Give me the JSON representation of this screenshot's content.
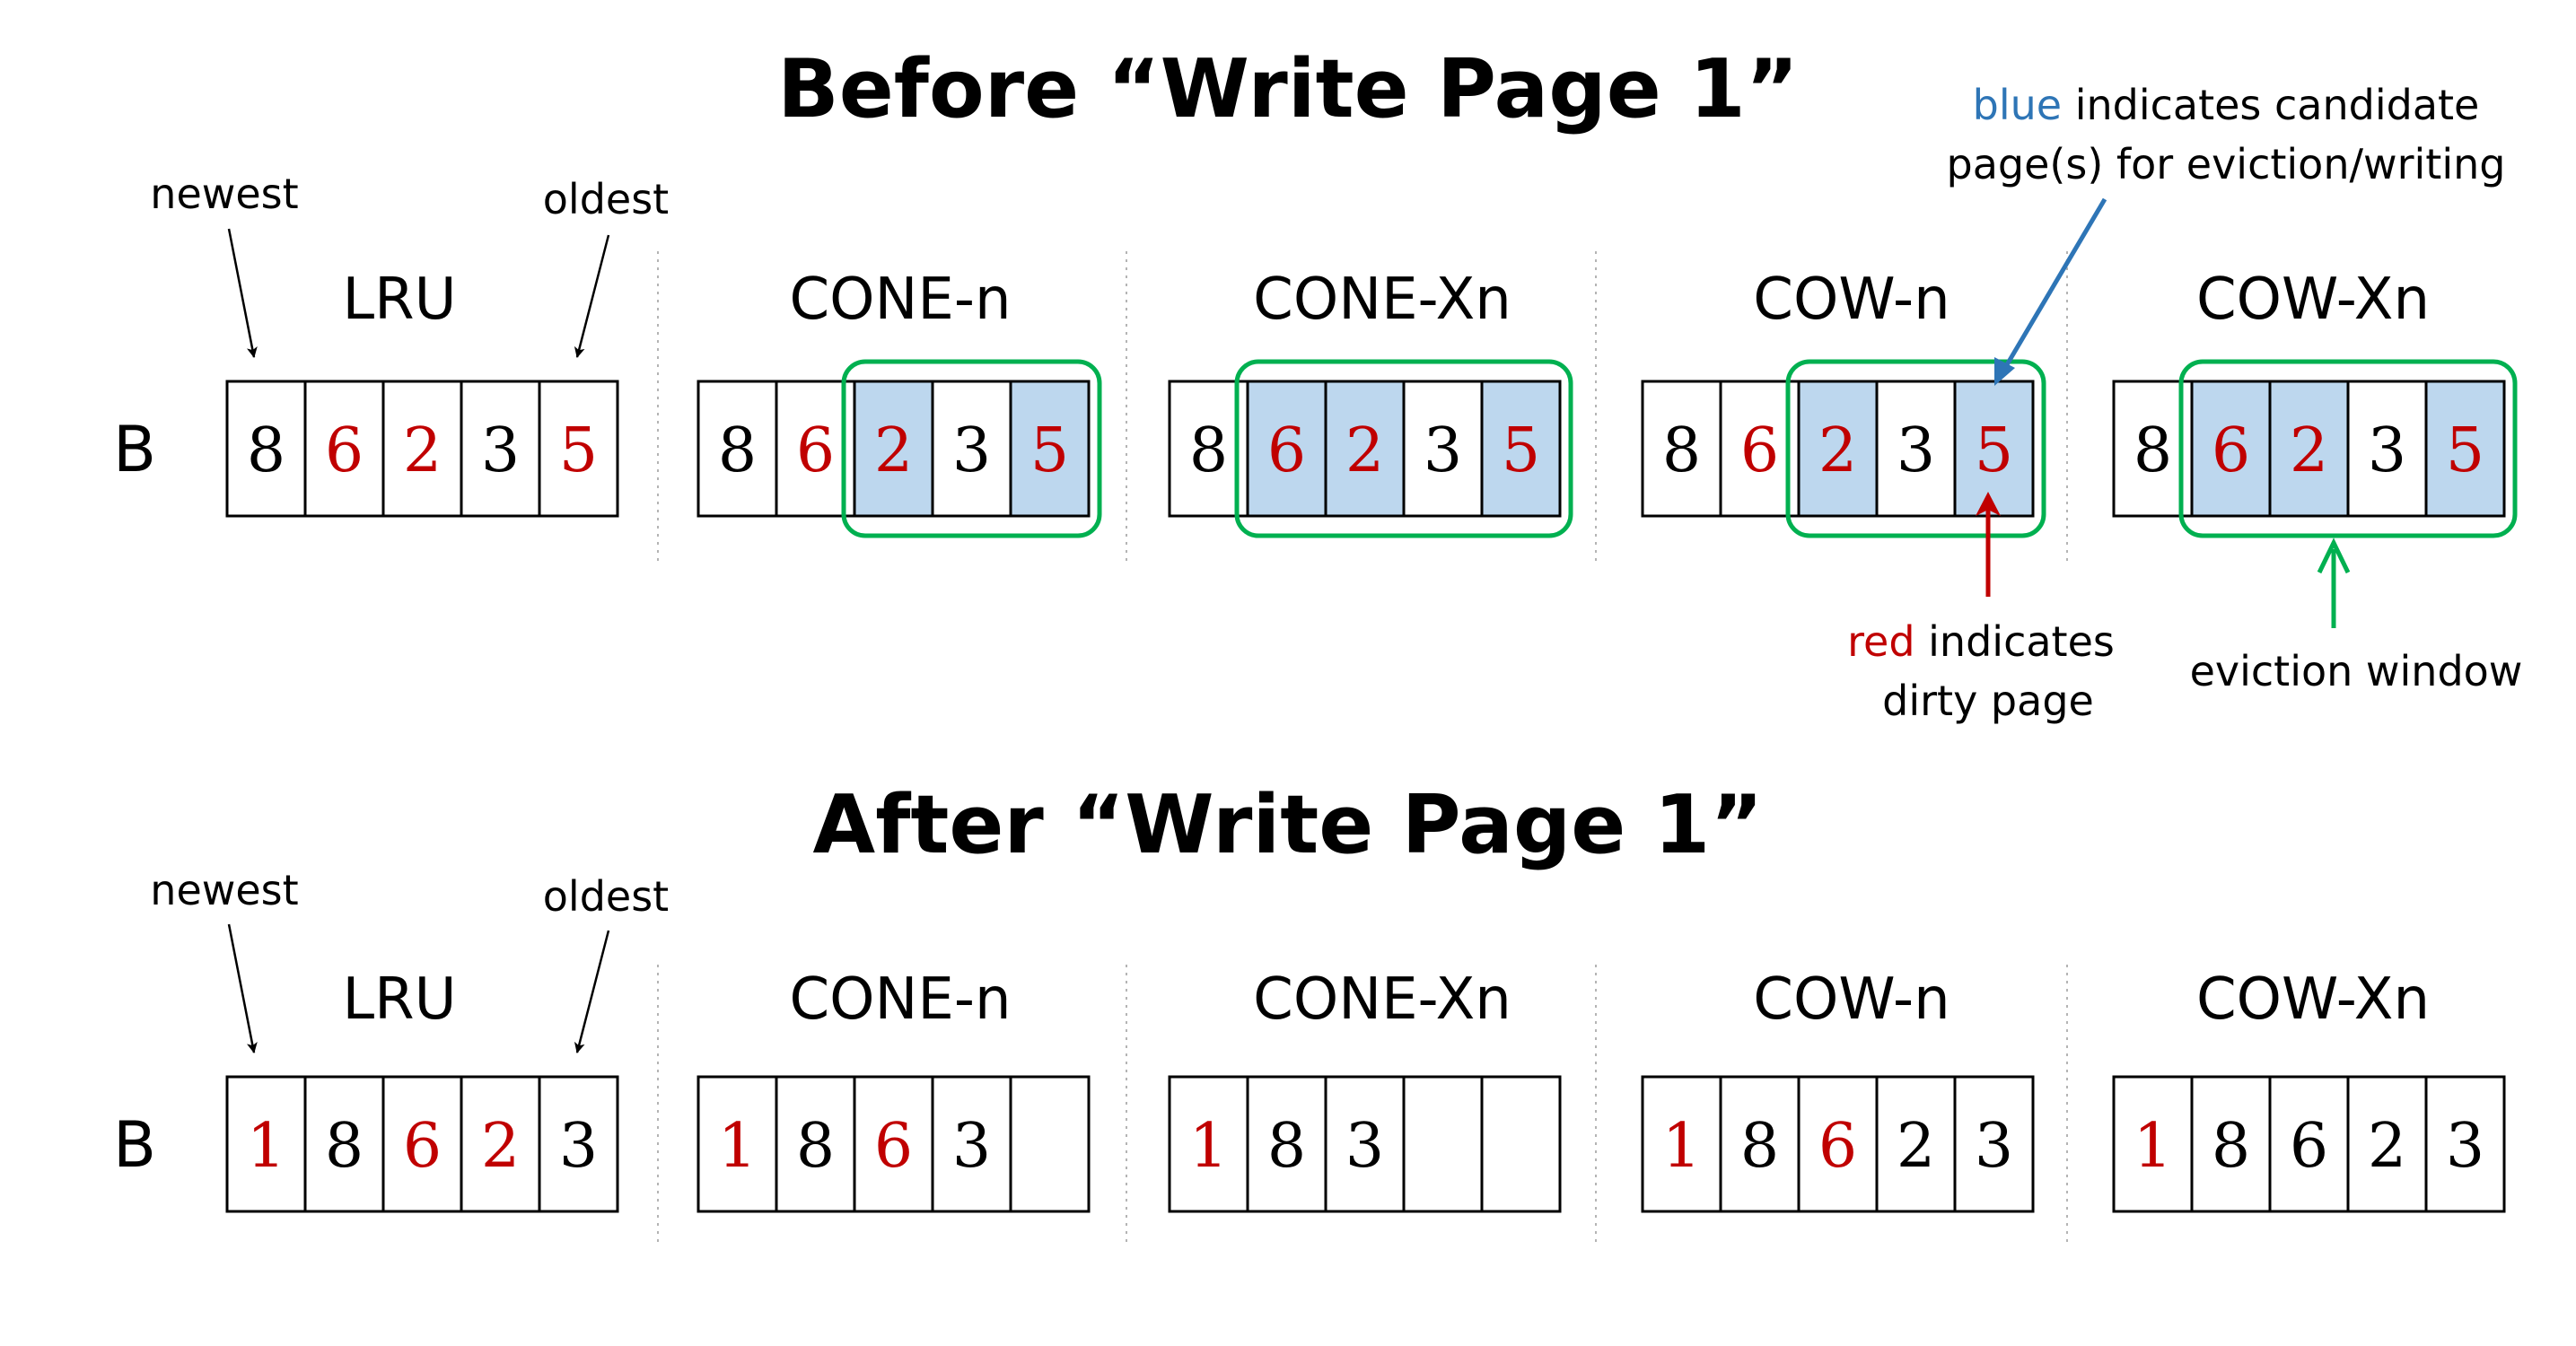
{
  "colors": {
    "dirty": "#c00000",
    "clean": "#000000",
    "candidate_fill": "#bdd7ee",
    "window_stroke": "#00b050",
    "blue_arrow": "#2e75b6",
    "red_arrow": "#c00000",
    "green_arrow": "#00b050",
    "divider": "#b4b4b4"
  },
  "row_label": "B",
  "panels": [
    {
      "title": "Before “Write Page 1”",
      "newest_label": "newest",
      "oldest_label": "oldest",
      "policies": [
        {
          "name": "LRU",
          "cells": [
            {
              "v": "8",
              "dirty": false,
              "cand": false
            },
            {
              "v": "6",
              "dirty": true,
              "cand": false
            },
            {
              "v": "2",
              "dirty": true,
              "cand": false
            },
            {
              "v": "3",
              "dirty": false,
              "cand": false
            },
            {
              "v": "5",
              "dirty": true,
              "cand": false
            }
          ],
          "window": null
        },
        {
          "name": "CONE-n",
          "cells": [
            {
              "v": "8",
              "dirty": false,
              "cand": false
            },
            {
              "v": "6",
              "dirty": true,
              "cand": false
            },
            {
              "v": "2",
              "dirty": true,
              "cand": true
            },
            {
              "v": "3",
              "dirty": false,
              "cand": false
            },
            {
              "v": "5",
              "dirty": true,
              "cand": true
            }
          ],
          "window": [
            2,
            4
          ]
        },
        {
          "name": "CONE-Xn",
          "cells": [
            {
              "v": "8",
              "dirty": false,
              "cand": false
            },
            {
              "v": "6",
              "dirty": true,
              "cand": true
            },
            {
              "v": "2",
              "dirty": true,
              "cand": true
            },
            {
              "v": "3",
              "dirty": false,
              "cand": false
            },
            {
              "v": "5",
              "dirty": true,
              "cand": true
            }
          ],
          "window": [
            1,
            4
          ]
        },
        {
          "name": "COW-n",
          "cells": [
            {
              "v": "8",
              "dirty": false,
              "cand": false
            },
            {
              "v": "6",
              "dirty": true,
              "cand": false
            },
            {
              "v": "2",
              "dirty": true,
              "cand": true
            },
            {
              "v": "3",
              "dirty": false,
              "cand": false
            },
            {
              "v": "5",
              "dirty": true,
              "cand": true
            }
          ],
          "window": [
            2,
            4
          ]
        },
        {
          "name": "COW-Xn",
          "cells": [
            {
              "v": "8",
              "dirty": false,
              "cand": false
            },
            {
              "v": "6",
              "dirty": true,
              "cand": true
            },
            {
              "v": "2",
              "dirty": true,
              "cand": true
            },
            {
              "v": "3",
              "dirty": false,
              "cand": false
            },
            {
              "v": "5",
              "dirty": true,
              "cand": true
            }
          ],
          "window": [
            1,
            4
          ]
        }
      ]
    },
    {
      "title": "After “Write Page 1”",
      "newest_label": "newest",
      "oldest_label": "oldest",
      "policies": [
        {
          "name": "LRU",
          "cells": [
            {
              "v": "1",
              "dirty": true
            },
            {
              "v": "8",
              "dirty": false
            },
            {
              "v": "6",
              "dirty": true
            },
            {
              "v": "2",
              "dirty": true
            },
            {
              "v": "3",
              "dirty": false
            }
          ]
        },
        {
          "name": "CONE-n",
          "cells": [
            {
              "v": "1",
              "dirty": true
            },
            {
              "v": "8",
              "dirty": false
            },
            {
              "v": "6",
              "dirty": true
            },
            {
              "v": "3",
              "dirty": false
            },
            {
              "v": "",
              "dirty": false
            }
          ]
        },
        {
          "name": "CONE-Xn",
          "cells": [
            {
              "v": "1",
              "dirty": true
            },
            {
              "v": "8",
              "dirty": false
            },
            {
              "v": "3",
              "dirty": false
            },
            {
              "v": "",
              "dirty": false
            },
            {
              "v": "",
              "dirty": false
            }
          ]
        },
        {
          "name": "COW-n",
          "cells": [
            {
              "v": "1",
              "dirty": true
            },
            {
              "v": "8",
              "dirty": false
            },
            {
              "v": "6",
              "dirty": true
            },
            {
              "v": "2",
              "dirty": false
            },
            {
              "v": "3",
              "dirty": false
            }
          ]
        },
        {
          "name": "COW-Xn",
          "cells": [
            {
              "v": "1",
              "dirty": true
            },
            {
              "v": "8",
              "dirty": false
            },
            {
              "v": "6",
              "dirty": false
            },
            {
              "v": "2",
              "dirty": false
            },
            {
              "v": "3",
              "dirty": false
            }
          ]
        }
      ]
    }
  ],
  "legend": {
    "blue_word": "blue",
    "blue_rest": " indicates candidate",
    "blue_line2": "page(s) for eviction/writing",
    "red_word": "red",
    "red_rest": " indicates",
    "red_line2": "dirty page",
    "window_label": "eviction window"
  }
}
